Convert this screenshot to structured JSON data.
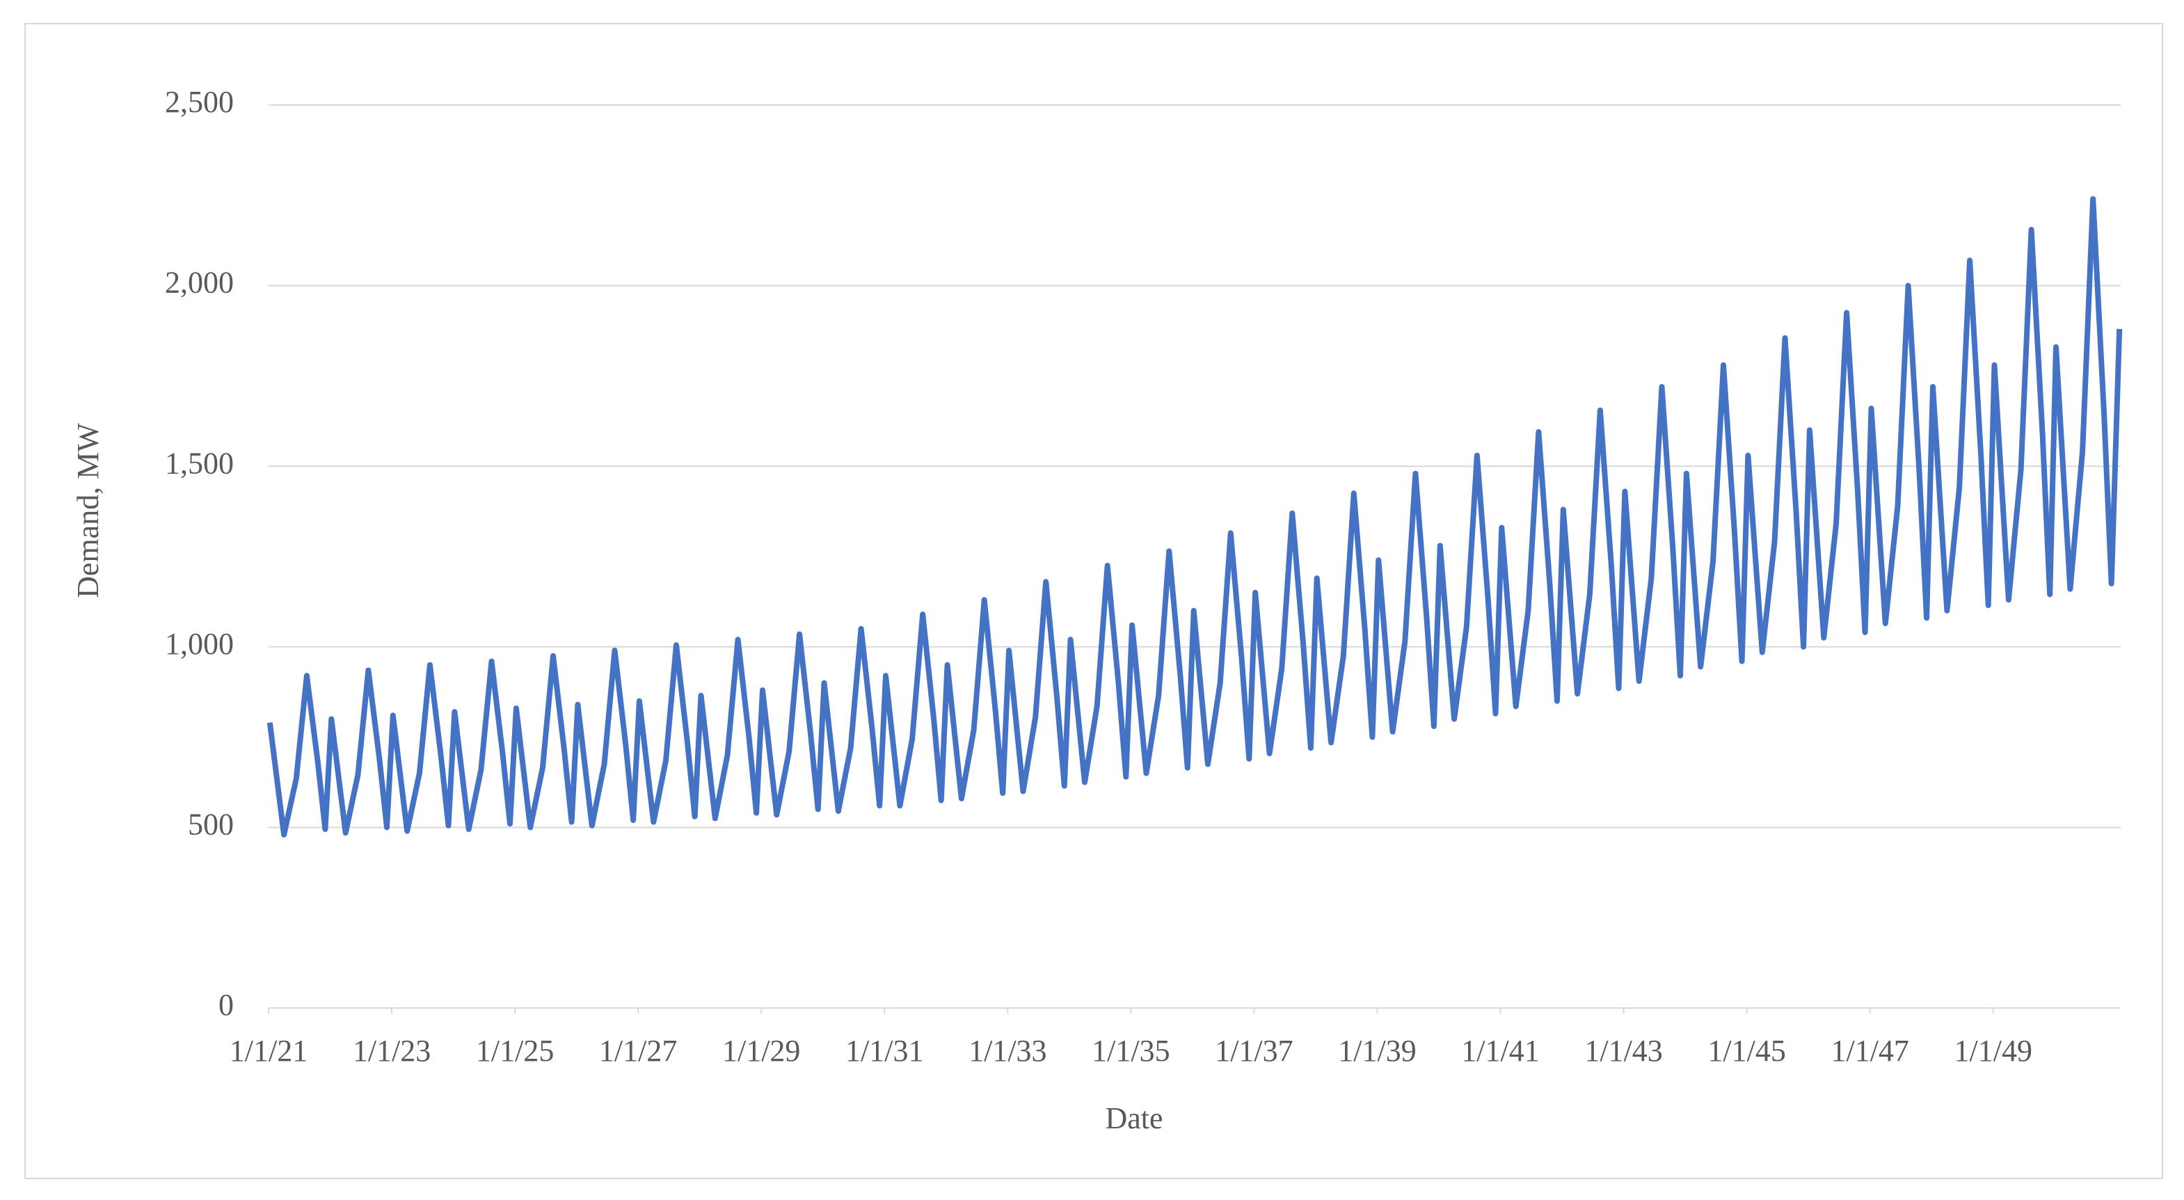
{
  "chart_data": {
    "type": "line",
    "x_label": "Date",
    "y_label": "Demand, MW",
    "color": "#4472c4",
    "grid": true,
    "xlim": [
      2021,
      2051.07
    ],
    "ylim": [
      0,
      2500
    ],
    "xticks": [
      {
        "value": 2021,
        "label": "1/1/21"
      },
      {
        "value": 2023,
        "label": "1/1/23"
      },
      {
        "value": 2025,
        "label": "1/1/25"
      },
      {
        "value": 2027,
        "label": "1/1/27"
      },
      {
        "value": 2029,
        "label": "1/1/29"
      },
      {
        "value": 2031,
        "label": "1/1/31"
      },
      {
        "value": 2033,
        "label": "1/1/33"
      },
      {
        "value": 2035,
        "label": "1/1/35"
      },
      {
        "value": 2037,
        "label": "1/1/37"
      },
      {
        "value": 2039,
        "label": "1/1/39"
      },
      {
        "value": 2041,
        "label": "1/1/41"
      },
      {
        "value": 2043,
        "label": "1/1/43"
      },
      {
        "value": 2045,
        "label": "1/1/45"
      },
      {
        "value": 2047,
        "label": "1/1/47"
      },
      {
        "value": 2049,
        "label": "1/1/49"
      }
    ],
    "yticks": [
      0,
      500,
      {
        "value": 1000,
        "label": "1,000"
      },
      {
        "value": 1500,
        "label": "1,500"
      },
      {
        "value": 2000,
        "label": "2,000"
      },
      {
        "value": 2500,
        "label": "2,500"
      }
    ],
    "x": [
      2021.02,
      2021.25,
      2021.45,
      2021.62,
      2021.8,
      2021.92,
      2022.02,
      2022.25,
      2022.45,
      2022.62,
      2022.8,
      2022.92,
      2023.02,
      2023.25,
      2023.45,
      2023.62,
      2023.8,
      2023.92,
      2024.02,
      2024.25,
      2024.45,
      2024.62,
      2024.8,
      2024.92,
      2025.02,
      2025.25,
      2025.45,
      2025.62,
      2025.8,
      2025.92,
      2026.02,
      2026.25,
      2026.45,
      2026.62,
      2026.8,
      2026.92,
      2027.02,
      2027.25,
      2027.45,
      2027.62,
      2027.8,
      2027.92,
      2028.02,
      2028.25,
      2028.45,
      2028.62,
      2028.8,
      2028.92,
      2029.02,
      2029.25,
      2029.45,
      2029.62,
      2029.8,
      2029.92,
      2030.02,
      2030.25,
      2030.45,
      2030.62,
      2030.8,
      2030.92,
      2031.02,
      2031.25,
      2031.45,
      2031.62,
      2031.8,
      2031.92,
      2032.02,
      2032.25,
      2032.45,
      2032.62,
      2032.8,
      2032.92,
      2033.02,
      2033.25,
      2033.45,
      2033.62,
      2033.8,
      2033.92,
      2034.02,
      2034.25,
      2034.45,
      2034.62,
      2034.8,
      2034.92,
      2035.02,
      2035.25,
      2035.45,
      2035.62,
      2035.8,
      2035.92,
      2036.02,
      2036.25,
      2036.45,
      2036.62,
      2036.8,
      2036.92,
      2037.02,
      2037.25,
      2037.45,
      2037.62,
      2037.8,
      2037.92,
      2038.02,
      2038.25,
      2038.45,
      2038.62,
      2038.8,
      2038.92,
      2039.02,
      2039.25,
      2039.45,
      2039.62,
      2039.8,
      2039.92,
      2040.02,
      2040.25,
      2040.45,
      2040.62,
      2040.8,
      2040.92,
      2041.02,
      2041.25,
      2041.45,
      2041.62,
      2041.8,
      2041.92,
      2042.02,
      2042.25,
      2042.45,
      2042.62,
      2042.8,
      2042.92,
      2043.02,
      2043.25,
      2043.45,
      2043.62,
      2043.8,
      2043.92,
      2044.02,
      2044.25,
      2044.45,
      2044.62,
      2044.8,
      2044.92,
      2045.02,
      2045.25,
      2045.45,
      2045.62,
      2045.8,
      2045.92,
      2046.02,
      2046.25,
      2046.45,
      2046.62,
      2046.8,
      2046.92,
      2047.02,
      2047.25,
      2047.45,
      2047.62,
      2047.8,
      2047.92,
      2048.02,
      2048.25,
      2048.45,
      2048.62,
      2048.8,
      2048.92,
      2049.02,
      2049.25,
      2049.45,
      2049.62,
      2049.8,
      2049.92,
      2050.02,
      2050.25,
      2050.45,
      2050.62,
      2050.8,
      2050.92,
      2051.05
    ],
    "values": [
      790,
      480,
      635,
      920,
      680,
      495,
      800,
      485,
      645,
      935,
      690,
      500,
      810,
      490,
      650,
      950,
      695,
      505,
      820,
      495,
      660,
      960,
      705,
      510,
      830,
      500,
      665,
      975,
      715,
      515,
      840,
      505,
      675,
      990,
      725,
      520,
      850,
      515,
      685,
      1005,
      735,
      530,
      865,
      525,
      700,
      1020,
      750,
      540,
      880,
      535,
      710,
      1035,
      760,
      550,
      900,
      545,
      720,
      1050,
      770,
      560,
      920,
      560,
      745,
      1090,
      800,
      575,
      950,
      580,
      770,
      1130,
      825,
      595,
      990,
      600,
      805,
      1180,
      860,
      615,
      1020,
      625,
      835,
      1225,
      895,
      640,
      1060,
      650,
      865,
      1265,
      925,
      665,
      1100,
      675,
      900,
      1315,
      965,
      690,
      1150,
      705,
      940,
      1370,
      1005,
      720,
      1190,
      735,
      975,
      1425,
      1045,
      750,
      1240,
      765,
      1015,
      1480,
      1085,
      780,
      1280,
      800,
      1055,
      1530,
      1130,
      815,
      1330,
      835,
      1100,
      1595,
      1175,
      850,
      1380,
      870,
      1145,
      1655,
      1225,
      885,
      1430,
      905,
      1190,
      1720,
      1270,
      920,
      1480,
      945,
      1235,
      1780,
      1320,
      960,
      1530,
      985,
      1290,
      1855,
      1375,
      1000,
      1600,
      1025,
      1340,
      1925,
      1430,
      1040,
      1660,
      1065,
      1390,
      2000,
      1485,
      1080,
      1720,
      1100,
      1440,
      2070,
      1535,
      1115,
      1780,
      1130,
      1490,
      2155,
      1590,
      1145,
      1830,
      1160,
      1540,
      2240,
      1645,
      1175,
      1880
    ]
  }
}
